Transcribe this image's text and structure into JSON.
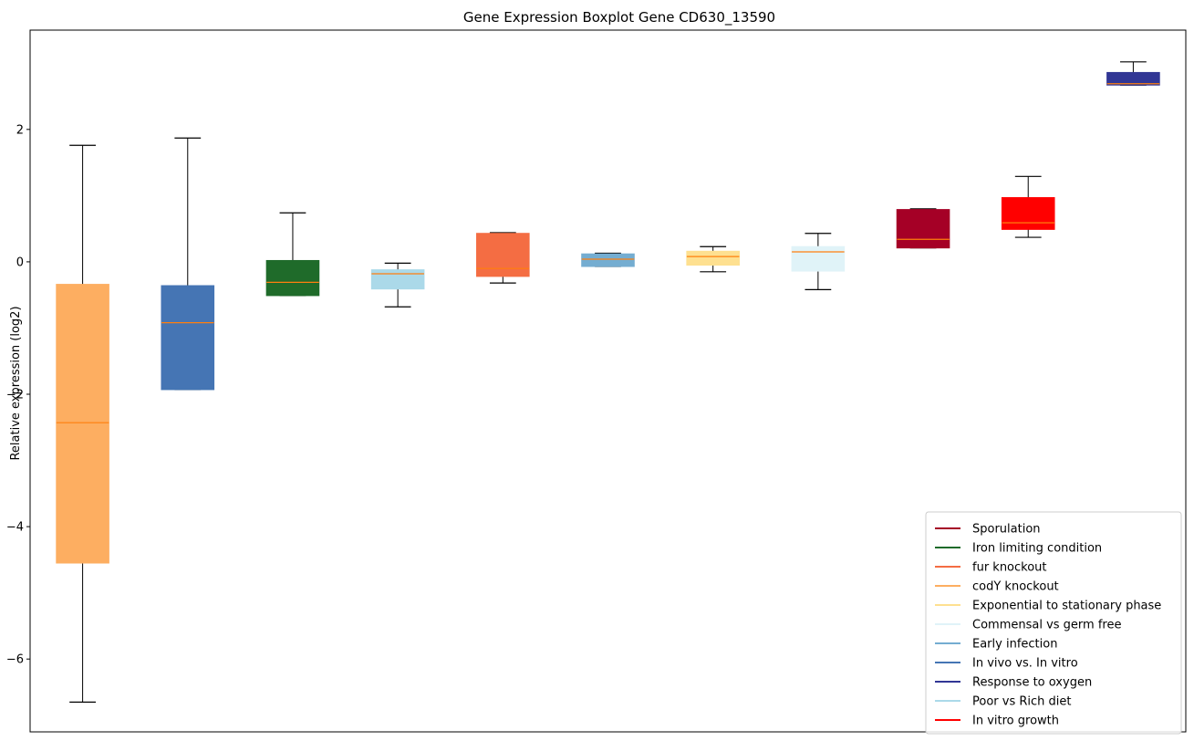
{
  "chart_data": {
    "type": "boxplot",
    "title": "Gene Expression Boxplot Gene CD630_13590",
    "xlabel": "",
    "ylabel": "Relative expression (log2)",
    "ylim": [
      -7.1,
      3.5
    ],
    "yticks": [
      2,
      0,
      -2,
      -4,
      -6
    ],
    "ytick_labels": [
      "2",
      "0",
      "−2",
      "−4",
      "−6"
    ],
    "x_ticks_visible": false,
    "grid": false,
    "legend_position": "lower-right",
    "median_color": "#ff7f0e",
    "boxes": [
      {
        "color": "#fdae61",
        "whisker_low": -6.65,
        "q1": -4.55,
        "median": -2.43,
        "q3": -0.34,
        "whisker_high": 1.76
      },
      {
        "color": "#4575b4",
        "whisker_low": -1.93,
        "q1": -1.93,
        "median": -0.92,
        "q3": -0.36,
        "whisker_high": 1.87
      },
      {
        "color": "#1f6b2a",
        "whisker_low": -0.51,
        "q1": -0.51,
        "median": -0.31,
        "q3": 0.02,
        "whisker_high": 0.74
      },
      {
        "color": "#abd9e9",
        "whisker_low": -0.68,
        "q1": -0.41,
        "median": -0.18,
        "q3": -0.12,
        "whisker_high": -0.02
      },
      {
        "color": "#f46d43",
        "whisker_low": -0.32,
        "q1": -0.22,
        "median": -0.1,
        "q3": 0.43,
        "whisker_high": 0.44
      },
      {
        "color": "#74add1",
        "whisker_low": -0.07,
        "q1": -0.07,
        "median": 0.04,
        "q3": 0.12,
        "whisker_high": 0.13
      },
      {
        "color": "#fee090",
        "whisker_low": -0.15,
        "q1": -0.05,
        "median": 0.08,
        "q3": 0.16,
        "whisker_high": 0.23
      },
      {
        "color": "#e0f3f8",
        "whisker_low": -0.42,
        "q1": -0.14,
        "median": 0.15,
        "q3": 0.23,
        "whisker_high": 0.43
      },
      {
        "color": "#a50026",
        "whisker_low": 0.21,
        "q1": 0.21,
        "median": 0.34,
        "q3": 0.79,
        "whisker_high": 0.8
      },
      {
        "color": "#ff0000",
        "whisker_low": 0.37,
        "q1": 0.49,
        "median": 0.59,
        "q3": 0.97,
        "whisker_high": 1.29
      },
      {
        "color": "#313695",
        "whisker_low": 2.67,
        "q1": 2.67,
        "median": 2.69,
        "q3": 2.86,
        "whisker_high": 3.02
      }
    ],
    "legend": [
      {
        "label": "Sporulation",
        "color": "#a50026"
      },
      {
        "label": "Iron limiting condition",
        "color": "#1f6b2a"
      },
      {
        "label": "fur knockout",
        "color": "#f46d43"
      },
      {
        "label": "codY knockout",
        "color": "#fdae61"
      },
      {
        "label": "Exponential to stationary phase",
        "color": "#fee090"
      },
      {
        "label": "Commensal vs germ free",
        "color": "#e0f3f8"
      },
      {
        "label": "Early infection",
        "color": "#74add1"
      },
      {
        "label": "In vivo vs. In vitro",
        "color": "#4575b4"
      },
      {
        "label": "Response to oxygen",
        "color": "#313695"
      },
      {
        "label": "Poor vs Rich diet",
        "color": "#abd9e9"
      },
      {
        "label": "In vitro growth",
        "color": "#ff0000"
      }
    ]
  }
}
